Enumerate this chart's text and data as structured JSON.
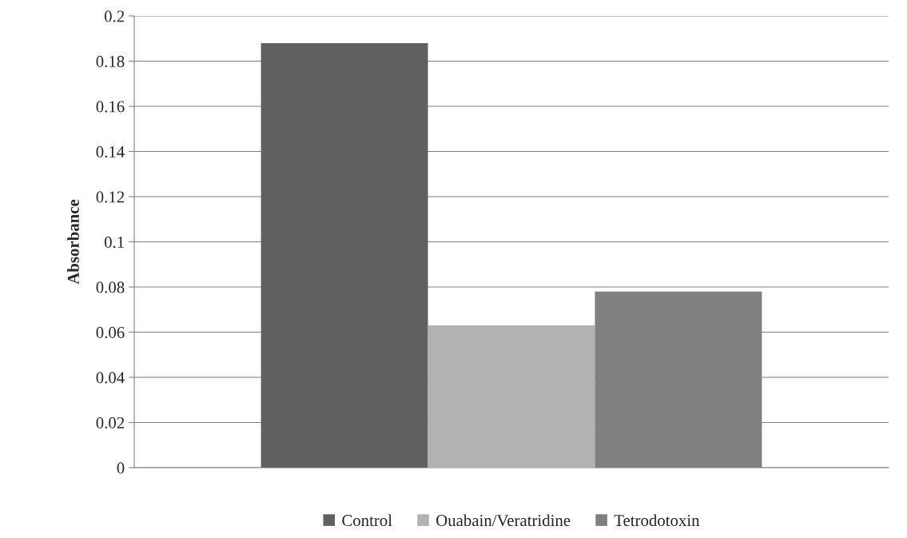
{
  "chart_data": {
    "type": "bar",
    "ylabel": "Absorbance",
    "categories": [
      null
    ],
    "series": [
      {
        "name": "Control",
        "color": "#606060",
        "values": [
          0.188
        ]
      },
      {
        "name": "Ouabain/Veratridine",
        "color": "#b2b2b2",
        "values": [
          0.063
        ]
      },
      {
        "name": "Tetrodotoxin",
        "color": "#808080",
        "values": [
          0.078
        ]
      }
    ],
    "ylim": [
      0,
      0.2
    ],
    "yticks": [
      0,
      0.02,
      0.04,
      0.06,
      0.08,
      0.1,
      0.12,
      0.14,
      0.16,
      0.18,
      0.2
    ],
    "grid": "y",
    "legend": "bottom"
  }
}
